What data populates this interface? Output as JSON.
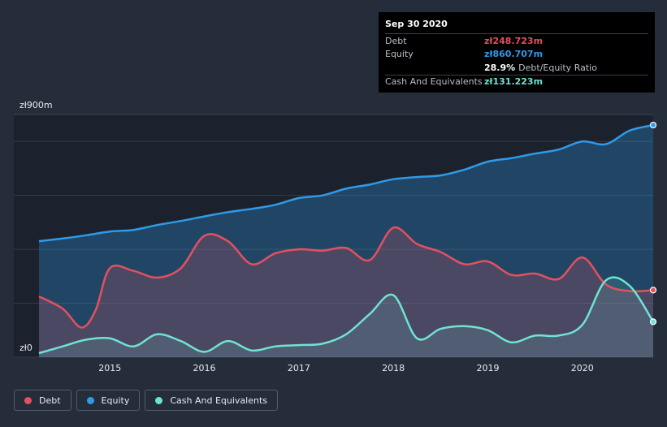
{
  "tooltip": {
    "date": "Sep 30 2020",
    "rows": [
      {
        "label": "Debt",
        "value": "zł248.723m",
        "color": "#e4505f"
      },
      {
        "label": "Equity",
        "value": "zł860.707m",
        "color": "#2f9ae8"
      },
      {
        "label": "",
        "value": "28.9%",
        "suffix": "Debt/Equity Ratio",
        "color": "#ffffff"
      },
      {
        "label": "Cash And Equivalents",
        "value": "zł131.223m",
        "color": "#6fe3d3"
      }
    ]
  },
  "legend": [
    {
      "label": "Debt",
      "color": "#e4505f"
    },
    {
      "label": "Equity",
      "color": "#2f9ae8"
    },
    {
      "label": "Cash And Equivalents",
      "color": "#6fe3d3"
    }
  ],
  "chart_data": {
    "type": "area",
    "y_top_label": "zł900m",
    "y_bottom_label": "zł0",
    "ylim": [
      0,
      900
    ],
    "xlim": [
      2014.25,
      2020.75
    ],
    "x_ticks": [
      "2015",
      "2016",
      "2017",
      "2018",
      "2019",
      "2020"
    ],
    "grid": true,
    "legend_position": "bottom-left",
    "series": [
      {
        "name": "Equity",
        "color": "#2f9ae8",
        "points": [
          [
            2014.25,
            430
          ],
          [
            2014.5,
            440
          ],
          [
            2014.75,
            452
          ],
          [
            2015.0,
            466
          ],
          [
            2015.25,
            472
          ],
          [
            2015.5,
            490
          ],
          [
            2015.75,
            505
          ],
          [
            2016.0,
            522
          ],
          [
            2016.25,
            538
          ],
          [
            2016.5,
            550
          ],
          [
            2016.75,
            565
          ],
          [
            2017.0,
            590
          ],
          [
            2017.25,
            600
          ],
          [
            2017.5,
            625
          ],
          [
            2017.75,
            640
          ],
          [
            2018.0,
            660
          ],
          [
            2018.25,
            668
          ],
          [
            2018.5,
            674
          ],
          [
            2018.75,
            695
          ],
          [
            2019.0,
            725
          ],
          [
            2019.25,
            738
          ],
          [
            2019.5,
            755
          ],
          [
            2019.75,
            770
          ],
          [
            2020.0,
            800
          ],
          [
            2020.25,
            790
          ],
          [
            2020.5,
            840
          ],
          [
            2020.75,
            860.7
          ]
        ]
      },
      {
        "name": "Debt",
        "color": "#e4505f",
        "points": [
          [
            2014.25,
            225
          ],
          [
            2014.5,
            180
          ],
          [
            2014.7,
            110
          ],
          [
            2014.85,
            175
          ],
          [
            2015.0,
            330
          ],
          [
            2015.25,
            320
          ],
          [
            2015.5,
            295
          ],
          [
            2015.75,
            330
          ],
          [
            2016.0,
            450
          ],
          [
            2016.25,
            430
          ],
          [
            2016.5,
            345
          ],
          [
            2016.75,
            385
          ],
          [
            2017.0,
            400
          ],
          [
            2017.25,
            395
          ],
          [
            2017.5,
            405
          ],
          [
            2017.75,
            360
          ],
          [
            2018.0,
            480
          ],
          [
            2018.25,
            420
          ],
          [
            2018.5,
            390
          ],
          [
            2018.75,
            345
          ],
          [
            2019.0,
            355
          ],
          [
            2019.25,
            305
          ],
          [
            2019.5,
            310
          ],
          [
            2019.75,
            290
          ],
          [
            2020.0,
            370
          ],
          [
            2020.25,
            270
          ],
          [
            2020.5,
            245
          ],
          [
            2020.75,
            248.7
          ]
        ]
      },
      {
        "name": "Cash And Equivalents",
        "color": "#6fe3d3",
        "points": [
          [
            2014.25,
            15
          ],
          [
            2014.5,
            40
          ],
          [
            2014.75,
            65
          ],
          [
            2015.0,
            70
          ],
          [
            2015.25,
            40
          ],
          [
            2015.5,
            85
          ],
          [
            2015.75,
            60
          ],
          [
            2016.0,
            20
          ],
          [
            2016.25,
            60
          ],
          [
            2016.5,
            25
          ],
          [
            2016.75,
            40
          ],
          [
            2017.0,
            45
          ],
          [
            2017.25,
            50
          ],
          [
            2017.5,
            85
          ],
          [
            2017.75,
            160
          ],
          [
            2018.0,
            230
          ],
          [
            2018.25,
            70
          ],
          [
            2018.5,
            105
          ],
          [
            2018.75,
            115
          ],
          [
            2019.0,
            100
          ],
          [
            2019.25,
            55
          ],
          [
            2019.5,
            80
          ],
          [
            2019.75,
            80
          ],
          [
            2020.0,
            120
          ],
          [
            2020.25,
            285
          ],
          [
            2020.5,
            265
          ],
          [
            2020.75,
            131.2
          ]
        ]
      }
    ]
  }
}
